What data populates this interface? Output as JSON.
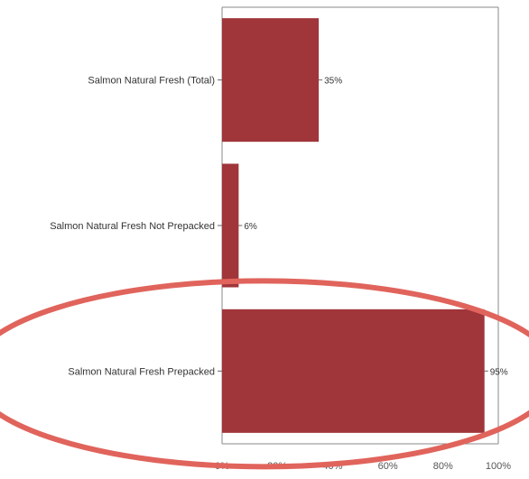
{
  "chart_data": {
    "type": "bar",
    "orientation": "horizontal",
    "categories": [
      "Salmon Natural Fresh (Total)",
      "Salmon Natural Fresh Not Prepacked",
      "Salmon Natural Fresh Prepacked"
    ],
    "values": [
      35,
      6,
      95
    ],
    "value_labels": [
      "35%",
      "6%",
      "95%"
    ],
    "xlim": [
      0,
      100
    ],
    "x_ticks": [
      "0%",
      "20%",
      "40%",
      "60%",
      "80%",
      "100%"
    ],
    "title": "",
    "xlabel": "",
    "ylabel": "",
    "grid": false,
    "legend": "none",
    "bar_color": "#a0353a",
    "highlight": {
      "category": "Salmon Natural Fresh Prepacked",
      "shape": "ellipse",
      "color": "#e0645c"
    }
  }
}
